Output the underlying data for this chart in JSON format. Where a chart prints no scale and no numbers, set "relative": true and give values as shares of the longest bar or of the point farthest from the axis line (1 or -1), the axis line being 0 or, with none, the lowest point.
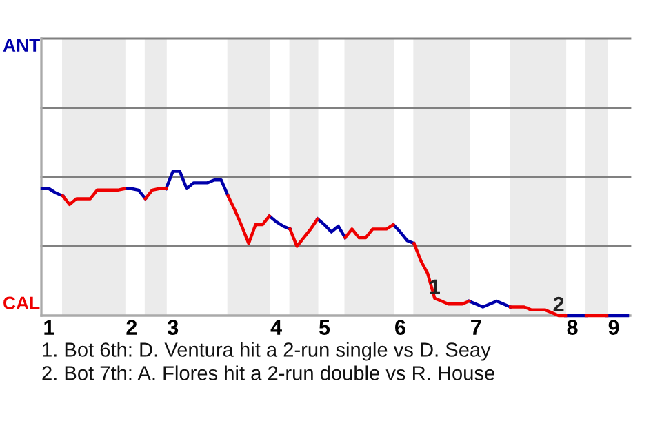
{
  "chart_data": {
    "type": "line",
    "relative": true,
    "categories": [
      null,
      "1",
      null,
      null,
      null,
      null,
      null,
      null,
      null,
      null,
      null,
      null,
      null,
      "2",
      null,
      null,
      null,
      null,
      null,
      "3",
      null,
      null,
      null,
      null,
      null,
      null,
      null,
      null,
      null,
      null,
      null,
      null,
      null,
      null,
      "4",
      null,
      null,
      null,
      null,
      null,
      null,
      "5",
      null,
      null,
      null,
      null,
      null,
      null,
      null,
      null,
      null,
      null,
      "6",
      null,
      null,
      null,
      null,
      null,
      null,
      null,
      null,
      null,
      null,
      "7",
      null,
      null,
      null,
      null,
      null,
      null,
      null,
      null,
      null,
      null,
      null,
      null,
      null,
      "8",
      null,
      null,
      null,
      null,
      null,
      "9",
      null,
      null
    ],
    "series": [
      {
        "color": "#0000aa",
        "values": [
          0.88,
          0.88,
          0.85,
          0.83,
          null,
          null,
          null,
          null,
          null,
          null,
          null,
          null,
          0.88,
          0.88,
          0.87,
          0.81,
          null,
          null,
          0.88,
          1,
          1,
          0.88,
          0.92,
          0.92,
          0.92,
          0.94,
          0.94,
          0.83,
          null,
          null,
          null,
          null,
          null,
          0.69,
          0.65,
          0.62,
          0.6,
          null,
          null,
          null,
          0.67,
          0.63,
          0.58,
          0.62,
          0.54,
          null,
          null,
          null,
          null,
          null,
          null,
          0.63,
          0.58,
          0.52,
          0.5,
          null,
          null,
          null,
          null,
          null,
          null,
          null,
          0.1,
          0.08,
          0.06,
          0.08,
          0.1,
          0.08,
          0.06,
          null,
          null,
          null,
          null,
          null,
          null,
          null,
          0,
          0,
          0,
          0,
          null,
          null,
          0,
          0,
          0,
          0
        ]
      },
      {
        "color": "#ee0000",
        "values": [
          null,
          null,
          null,
          0.83,
          0.77,
          0.81,
          0.81,
          0.81,
          0.87,
          0.87,
          0.87,
          0.87,
          0.88,
          null,
          null,
          0.81,
          0.87,
          0.88,
          0.88,
          null,
          null,
          null,
          null,
          null,
          null,
          null,
          null,
          0.83,
          0.73,
          0.62,
          0.5,
          0.63,
          0.63,
          0.69,
          null,
          null,
          0.6,
          0.48,
          0.54,
          0.6,
          0.67,
          null,
          null,
          null,
          0.54,
          0.6,
          0.54,
          0.54,
          0.6,
          0.6,
          0.6,
          0.63,
          null,
          null,
          0.5,
          0.38,
          0.29,
          0.12,
          0.1,
          0.08,
          0.08,
          0.08,
          0.1,
          null,
          null,
          null,
          null,
          null,
          0.06,
          0.06,
          0.06,
          0.04,
          0.04,
          0.04,
          0.02,
          0,
          0,
          null,
          null,
          0,
          0,
          0,
          0,
          null,
          null,
          null
        ]
      }
    ],
    "ref_lines": [
      {
        "axis": "y",
        "value": 0.48,
        "color": "#808080"
      },
      {
        "axis": "y",
        "value": 0.96,
        "color": "#808080"
      },
      {
        "axis": "y",
        "value": 1.44,
        "color": "#808080"
      },
      {
        "axis": "y",
        "value": 1.92,
        "color": "#808080"
      }
    ],
    "tick_labels": "x",
    "marker": "none",
    "line_style": "solid",
    "annotations": [
      "ANT",
      "CAL",
      {
        "text": "1",
        "y": 0.12
      },
      {
        "text": "2",
        "y": 0
      },
      "1. Bot 6th: D. Ventura hit a 2-run single vs D. Seay",
      "2. Bot 7th: A. Flores hit a 2-run double vs R. House"
    ]
  }
}
